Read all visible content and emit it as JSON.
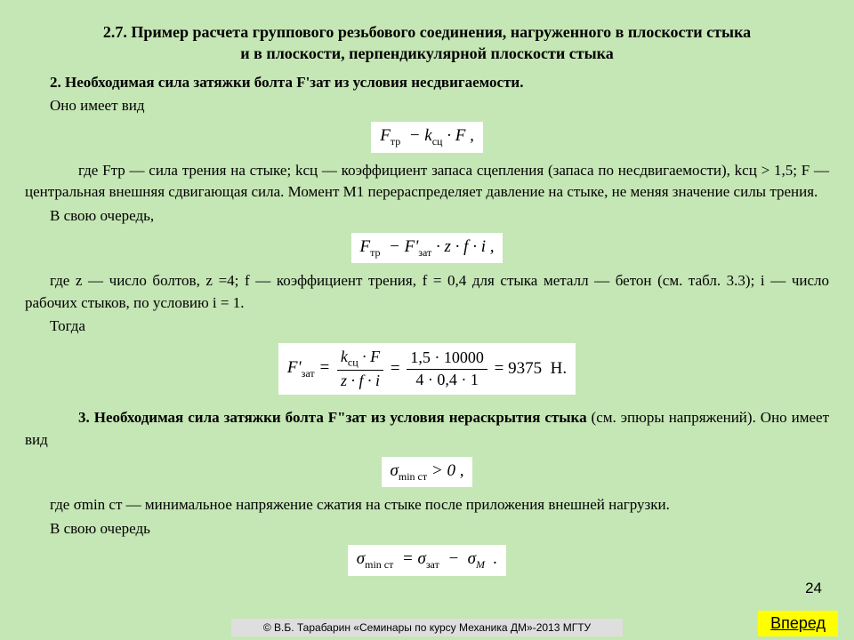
{
  "title_line1": "2.7. Пример расчета группового резьбового соединения, нагруженного в плоскости стыка",
  "title_line2": "и в плоскости, перпендикулярной плоскости стыка",
  "sec2_heading": "2. Необходимая сила затяжки болта F'зат из условия несдвигаемости.",
  "p_intro": "Оно имеет вид",
  "formula1_html": "<span class='ital'>F</span><sub>тр</sub>&nbsp;&nbsp;−&nbsp;<span class='ital'>k</span><sub>сц</sub>&nbsp;·&nbsp;<span class='ital'>F</span> ,",
  "p_where1": "где Fтр — сила трения на стыке; kсц — коэффициент запаса сцепления (запаса по несдвигаемости), kсц > 1,5; F — центральная внешняя сдвигающая сила. Момент M1 перераспределяет давление на стыке, не меняя значение силы трения.",
  "p_inturn1": "В свою очередь,",
  "formula2_html": "<span class='ital'>F</span><sub>тр</sub>&nbsp;&nbsp;−&nbsp;<span class='ital'>F'</span><sub>зат</sub>&nbsp;·&nbsp;<span class='ital'>z</span>&nbsp;·&nbsp;<span class='ital'>f</span>&nbsp;·&nbsp;<span class='ital'>i</span> ,",
  "p_where2": "где z — число болтов, z =4; f — коэффициент трения, f = 0,4 для стыка металл — бетон (см. табл. 3.3); i — число рабочих стыков, по условию i = 1.",
  "p_then": "Тогда",
  "formula3_lhs": "F'<sub>зат</sub>&nbsp;=",
  "formula3_f1_num": "<span class='ital'>k</span><sub>сц</sub> · <span class='ital'>F</span>",
  "formula3_f1_den": "<span class='ital'>z</span> · <span class='ital'>f</span> · <span class='ital'>i</span>",
  "formula3_f2_num": "1,5 · 10000",
  "formula3_f2_den": "4 · 0,4 · 1",
  "formula3_result": "= 9375&nbsp; Н.",
  "sec3_heading_pre": "3. Необходимая сила затяжки болта F\"зат из условия нераскрытия стыка",
  "sec3_heading_post": " (см. эпюры напряжений). Оно имеет вид",
  "formula4_html": "<span class='ital'>σ</span><sub>min ст</sub>&nbsp;>&nbsp;0 ,",
  "p_where3": "где σmin ст — минимальное напряжение сжатия на стыке после приложения внешней нагрузки.",
  "p_inturn2": "В свою очередь",
  "formula5_html": "<span class='ital'>σ</span><sub>min ст</sub>&nbsp;&nbsp;=&nbsp;<span class='ital'>σ</span><sub>зат</sub>&nbsp;&nbsp;−&nbsp;&nbsp;<span class='ital'>σ</span><sub><span class='ital'>M</span></sub>&nbsp;&nbsp;.",
  "page_number": "24",
  "footer_text": "© В.Б. Тарабарин «Семинары по курсу Механика ДМ»-2013 МГТУ",
  "forward_label": "Вперед",
  "colors": {
    "page_bg": "#c5e6b5",
    "formula_bg": "#ffffff",
    "footer_bg": "#dedede",
    "button_bg": "#ffff00",
    "text": "#000000"
  }
}
